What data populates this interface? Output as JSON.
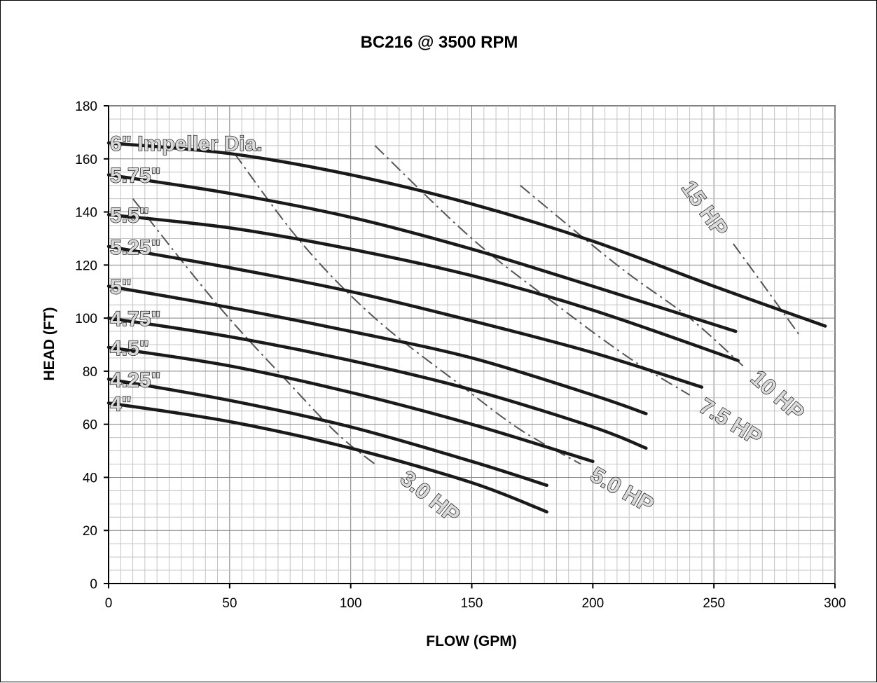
{
  "chart_data": {
    "type": "line",
    "title": "BC216 @ 3500 RPM",
    "xlabel": "FLOW (GPM)",
    "ylabel": "HEAD (FT)",
    "xlim": [
      0,
      300
    ],
    "ylim": [
      0,
      180
    ],
    "x_ticks": [
      0,
      50,
      100,
      150,
      200,
      250,
      300
    ],
    "y_ticks": [
      0,
      20,
      40,
      60,
      80,
      100,
      120,
      140,
      160,
      180
    ],
    "grid": true,
    "impeller_curves": [
      {
        "name": "6\" Impeller Dia.",
        "x": [
          0,
          50,
          100,
          150,
          200,
          250,
          296
        ],
        "y": [
          166,
          162,
          154,
          143,
          129,
          112,
          97
        ]
      },
      {
        "name": "5.75\"",
        "x": [
          0,
          50,
          100,
          150,
          200,
          259
        ],
        "y": [
          154,
          147,
          138,
          126,
          112,
          95
        ]
      },
      {
        "name": "5.5\"",
        "x": [
          0,
          50,
          100,
          150,
          200,
          260
        ],
        "y": [
          139,
          134,
          126,
          116,
          103,
          84
        ]
      },
      {
        "name": "5.25\"",
        "x": [
          0,
          50,
          100,
          150,
          200,
          245
        ],
        "y": [
          127,
          119,
          110,
          99,
          87,
          74
        ]
      },
      {
        "name": "5\"",
        "x": [
          0,
          50,
          100,
          150,
          200,
          222
        ],
        "y": [
          112,
          104,
          95,
          85,
          71,
          64
        ]
      },
      {
        "name": "4.75\"",
        "x": [
          0,
          50,
          100,
          150,
          200,
          222
        ],
        "y": [
          100,
          93,
          84,
          73,
          59,
          51
        ]
      },
      {
        "name": "4.5\"",
        "x": [
          0,
          50,
          100,
          150,
          200
        ],
        "y": [
          89,
          82,
          72,
          60,
          46
        ]
      },
      {
        "name": "4.25\"",
        "x": [
          0,
          50,
          100,
          150,
          181
        ],
        "y": [
          77,
          69,
          59,
          46,
          37
        ]
      },
      {
        "name": "4\"",
        "x": [
          0,
          50,
          100,
          150,
          181
        ],
        "y": [
          68,
          61,
          51,
          38,
          27
        ]
      }
    ],
    "power_lines": [
      {
        "name": "3.0 HP",
        "x": [
          10,
          45,
          75,
          95,
          110
        ],
        "y": [
          145,
          105,
          75,
          56,
          45
        ]
      },
      {
        "name": "5.0 HP",
        "x": [
          52,
          80,
          110,
          145,
          170,
          195
        ],
        "y": [
          162,
          128,
          100,
          75,
          58,
          45
        ]
      },
      {
        "name": "7.5 HP",
        "x": [
          110,
          150,
          185,
          215,
          240
        ],
        "y": [
          165,
          130,
          105,
          85,
          71
        ]
      },
      {
        "name": "10 HP",
        "x": [
          170,
          210,
          240,
          262
        ],
        "y": [
          150,
          120,
          100,
          82
        ]
      },
      {
        "name": "15 HP",
        "x": [
          258,
          270,
          285
        ],
        "y": [
          128,
          113,
          94
        ]
      }
    ]
  }
}
